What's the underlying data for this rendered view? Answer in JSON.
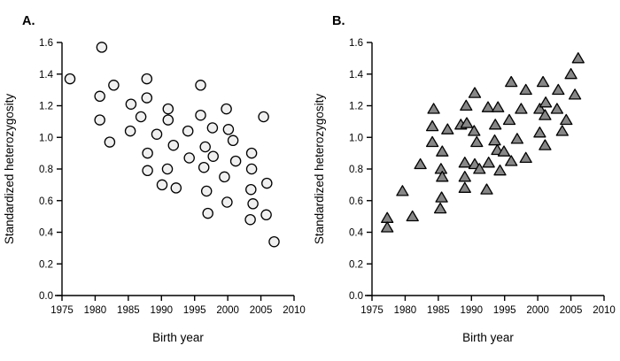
{
  "figure": {
    "background": "#ffffff",
    "axis_color": "#000000",
    "text_color": "#000000"
  },
  "chart_data": [
    {
      "type": "scatter",
      "panel_label": "A.",
      "marker": "circle",
      "marker_fill": "#f0f0f0",
      "marker_stroke": "#000000",
      "xlabel": "Birth year",
      "ylabel": "Standardized heterozygosity",
      "xlim": [
        1975,
        2010
      ],
      "ylim": [
        0.0,
        1.6
      ],
      "xticks": [
        "1975",
        "1980",
        "1985",
        "1990",
        "1995",
        "2000",
        "2005",
        "2010"
      ],
      "yticks": [
        "0.0",
        "0.2",
        "0.4",
        "0.6",
        "0.8",
        "1.0",
        "1.2",
        "1.4",
        "1.6"
      ],
      "grid": false,
      "legend": false,
      "points": [
        [
          1976.2,
          1.37
        ],
        [
          1981.0,
          1.57
        ],
        [
          1980.7,
          1.26
        ],
        [
          1980.7,
          1.11
        ],
        [
          1982.2,
          0.97
        ],
        [
          1982.8,
          1.33
        ],
        [
          1985.4,
          1.21
        ],
        [
          1985.3,
          1.04
        ],
        [
          1986.9,
          1.13
        ],
        [
          1987.8,
          1.37
        ],
        [
          1987.8,
          1.25
        ],
        [
          1987.9,
          0.9
        ],
        [
          1987.9,
          0.79
        ],
        [
          1989.3,
          1.02
        ],
        [
          1990.1,
          0.7
        ],
        [
          1991.0,
          1.18
        ],
        [
          1991.0,
          1.11
        ],
        [
          1991.8,
          0.95
        ],
        [
          1990.9,
          0.8
        ],
        [
          1992.2,
          0.68
        ],
        [
          1994.0,
          1.04
        ],
        [
          1994.2,
          0.87
        ],
        [
          1995.9,
          1.33
        ],
        [
          1995.9,
          1.14
        ],
        [
          1996.6,
          0.94
        ],
        [
          1996.4,
          0.81
        ],
        [
          1996.8,
          0.66
        ],
        [
          1997.0,
          0.52
        ],
        [
          1997.7,
          1.06
        ],
        [
          1997.8,
          0.88
        ],
        [
          1999.8,
          1.18
        ],
        [
          1999.5,
          0.75
        ],
        [
          2000.1,
          1.05
        ],
        [
          1999.9,
          0.59
        ],
        [
          2000.8,
          0.98
        ],
        [
          2001.2,
          0.85
        ],
        [
          2003.6,
          0.9
        ],
        [
          2003.6,
          0.8
        ],
        [
          2003.5,
          0.67
        ],
        [
          2003.8,
          0.58
        ],
        [
          2003.4,
          0.48
        ],
        [
          2005.4,
          1.13
        ],
        [
          2005.9,
          0.71
        ],
        [
          2005.8,
          0.51
        ],
        [
          2007.0,
          0.34
        ]
      ]
    },
    {
      "type": "scatter",
      "panel_label": "B.",
      "marker": "triangle",
      "marker_fill": "#878787",
      "marker_stroke": "#000000",
      "xlabel": "Birth year",
      "ylabel": "Standardized heterozygosity",
      "xlim": [
        1975,
        2010
      ],
      "ylim": [
        0.0,
        1.6
      ],
      "xticks": [
        "1975",
        "1980",
        "1985",
        "1990",
        "1995",
        "2000",
        "2005",
        "2010"
      ],
      "yticks": [
        "0.0",
        "0.2",
        "0.4",
        "0.6",
        "0.8",
        "1.0",
        "1.2",
        "1.4",
        "1.6"
      ],
      "grid": false,
      "legend": false,
      "points": [
        [
          1977.3,
          0.49
        ],
        [
          1977.3,
          0.43
        ],
        [
          1979.6,
          0.66
        ],
        [
          1981.1,
          0.5
        ],
        [
          1982.3,
          0.83
        ],
        [
          1984.3,
          1.18
        ],
        [
          1984.1,
          1.07
        ],
        [
          1984.1,
          0.97
        ],
        [
          1985.6,
          0.91
        ],
        [
          1985.4,
          0.8
        ],
        [
          1985.6,
          0.75
        ],
        [
          1985.5,
          0.62
        ],
        [
          1985.3,
          0.55
        ],
        [
          1986.4,
          1.05
        ],
        [
          1988.4,
          1.08
        ],
        [
          1989.3,
          1.09
        ],
        [
          1989.2,
          1.2
        ],
        [
          1989.0,
          0.84
        ],
        [
          1989.0,
          0.75
        ],
        [
          1989.0,
          0.68
        ],
        [
          1990.5,
          1.28
        ],
        [
          1990.4,
          1.04
        ],
        [
          1990.8,
          0.97
        ],
        [
          1990.5,
          0.83
        ],
        [
          1991.2,
          0.8
        ],
        [
          1992.6,
          0.84
        ],
        [
          1992.5,
          1.19
        ],
        [
          1992.3,
          0.67
        ],
        [
          1994.0,
          1.19
        ],
        [
          1993.6,
          1.08
        ],
        [
          1993.5,
          0.98
        ],
        [
          1993.9,
          0.92
        ],
        [
          1994.9,
          0.91
        ],
        [
          1994.3,
          0.79
        ],
        [
          1995.7,
          1.11
        ],
        [
          1996.0,
          1.35
        ],
        [
          1996.0,
          0.85
        ],
        [
          1996.9,
          0.99
        ],
        [
          1997.5,
          1.18
        ],
        [
          1998.2,
          1.3
        ],
        [
          1998.2,
          0.87
        ],
        [
          2000.8,
          1.35
        ],
        [
          2000.3,
          1.18
        ],
        [
          2000.3,
          1.03
        ],
        [
          2001.2,
          1.22
        ],
        [
          2001.1,
          1.14
        ],
        [
          2001.1,
          0.95
        ],
        [
          2003.1,
          1.3
        ],
        [
          2002.9,
          1.18
        ],
        [
          2003.7,
          1.04
        ],
        [
          2004.3,
          1.11
        ],
        [
          2005.0,
          1.4
        ],
        [
          2005.6,
          1.27
        ],
        [
          2006.1,
          1.5
        ]
      ]
    }
  ]
}
